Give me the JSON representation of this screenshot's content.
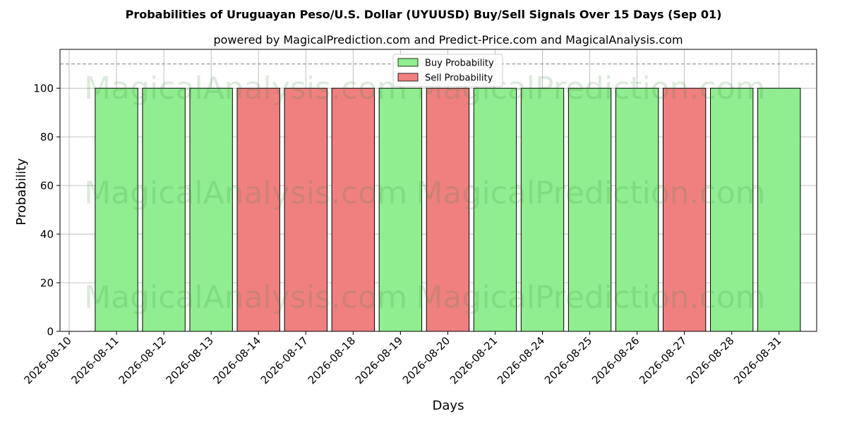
{
  "chart_data": {
    "type": "bar",
    "title": "Probabilities of Uruguayan Peso/U.S. Dollar (UYUUSD) Buy/Sell Signals Over 15 Days (Sep 01)",
    "subtitle": "powered by MagicalPrediction.com and Predict-Price.com and MagicalAnalysis.com",
    "xlabel": "Days",
    "ylabel": "Probability",
    "ylim": [
      0,
      116
    ],
    "yticks": [
      0,
      20,
      40,
      60,
      80,
      100
    ],
    "reference_line": 110,
    "grid": true,
    "legend_position": "top-center",
    "x_ticks": [
      "2026-08-10",
      "2026-08-11",
      "2026-08-12",
      "2026-08-13",
      "2026-08-14",
      "2026-08-17",
      "2026-08-18",
      "2026-08-19",
      "2026-08-20",
      "2026-08-21",
      "2026-08-24",
      "2026-08-25",
      "2026-08-26",
      "2026-08-27",
      "2026-08-28",
      "2026-08-31"
    ],
    "categories": [
      "2026-08-11",
      "2026-08-12",
      "2026-08-13",
      "2026-08-14",
      "2026-08-17",
      "2026-08-18",
      "2026-08-19",
      "2026-08-20",
      "2026-08-21",
      "2026-08-24",
      "2026-08-25",
      "2026-08-26",
      "2026-08-27",
      "2026-08-28",
      "2026-08-31"
    ],
    "series": [
      {
        "name": "Buy Probability",
        "color": "#90ee90",
        "values": [
          100,
          100,
          100,
          0,
          0,
          0,
          100,
          0,
          100,
          100,
          100,
          100,
          0,
          100,
          100
        ]
      },
      {
        "name": "Sell Probability",
        "color": "#f08080",
        "values": [
          0,
          0,
          0,
          100,
          100,
          100,
          0,
          100,
          0,
          0,
          0,
          0,
          100,
          0,
          0
        ]
      }
    ]
  },
  "watermarks": [
    "MagicalAnalysis.com",
    "MagicalPrediction.com"
  ]
}
